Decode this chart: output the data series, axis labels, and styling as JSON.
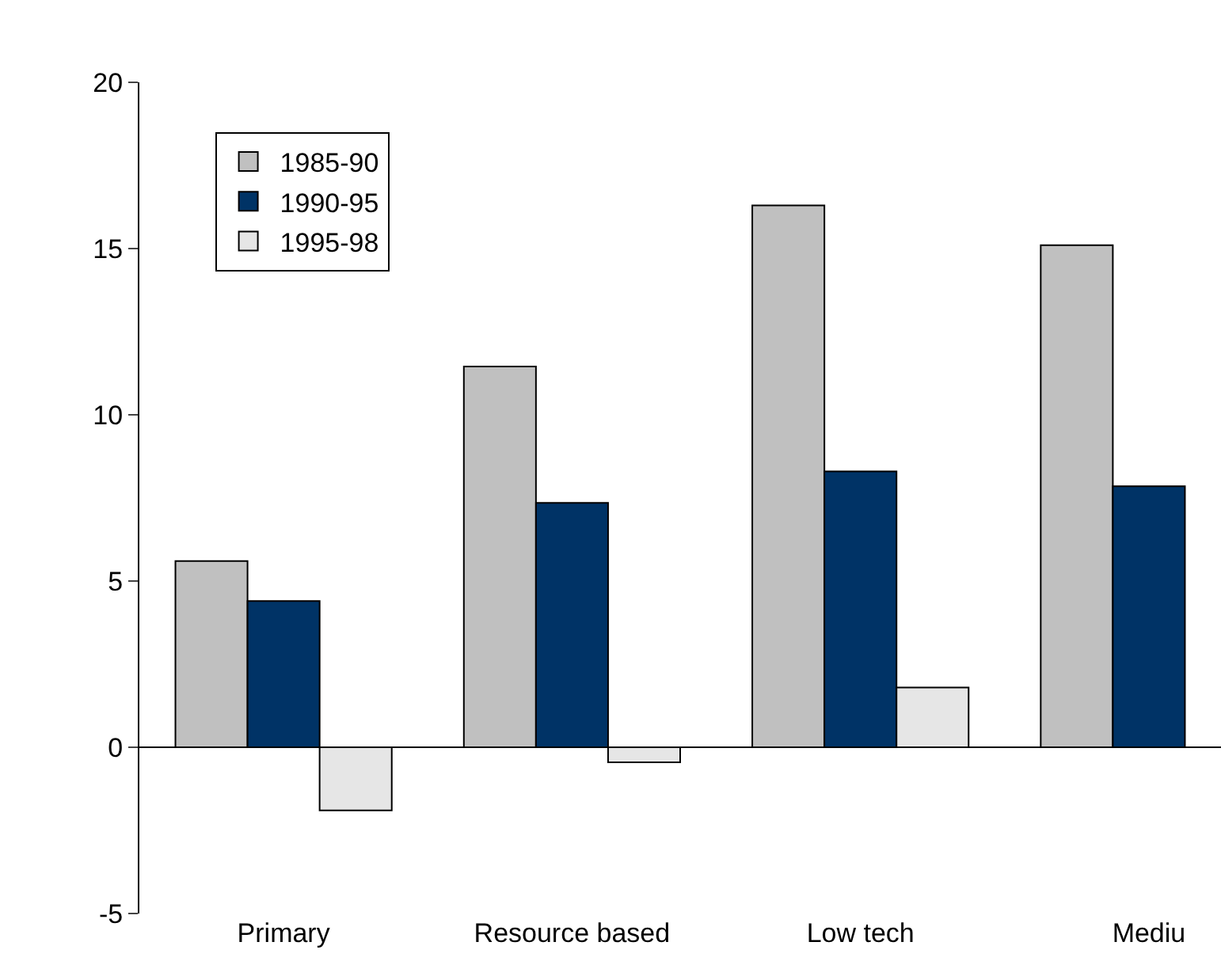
{
  "chart_data": {
    "type": "bar",
    "categories": [
      "Primary",
      "Resource based",
      "Low tech",
      "Mediu"
    ],
    "series": [
      {
        "name": "1985-90",
        "color": "#c0c0c0",
        "values": [
          5.6,
          11.45,
          16.3,
          15.1
        ]
      },
      {
        "name": "1990-95",
        "color": "#003366",
        "values": [
          4.4,
          7.35,
          8.3,
          7.85
        ]
      },
      {
        "name": "1995-98",
        "color": "#e6e6e6",
        "values": [
          -1.9,
          -0.45,
          1.8,
          null
        ]
      }
    ],
    "ylim": [
      -5,
      20
    ],
    "yticks": [
      -5,
      0,
      5,
      10,
      15,
      20
    ],
    "legend": "top left"
  }
}
